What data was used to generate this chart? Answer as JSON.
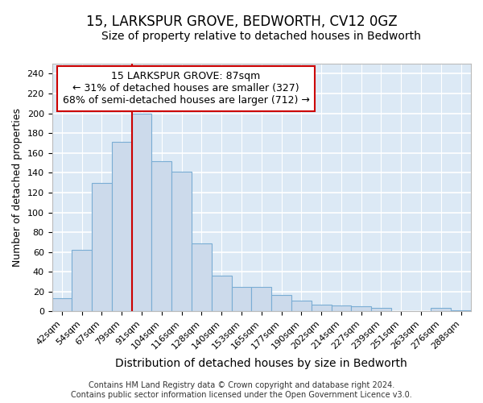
{
  "title": "15, LARKSPUR GROVE, BEDWORTH, CV12 0GZ",
  "subtitle": "Size of property relative to detached houses in Bedworth",
  "xlabel": "Distribution of detached houses by size in Bedworth",
  "ylabel": "Number of detached properties",
  "categories": [
    "42sqm",
    "54sqm",
    "67sqm",
    "79sqm",
    "91sqm",
    "104sqm",
    "116sqm",
    "128sqm",
    "140sqm",
    "153sqm",
    "165sqm",
    "177sqm",
    "190sqm",
    "202sqm",
    "214sqm",
    "227sqm",
    "239sqm",
    "251sqm",
    "263sqm",
    "276sqm",
    "288sqm"
  ],
  "values": [
    13,
    62,
    130,
    171,
    200,
    152,
    141,
    69,
    36,
    25,
    25,
    17,
    11,
    7,
    6,
    5,
    4,
    0,
    0,
    4,
    1
  ],
  "bar_color": "#ccdaeb",
  "bar_edge_color": "#7aadd4",
  "plot_bg_color": "#dce9f5",
  "fig_bg_color": "#ffffff",
  "grid_color": "#ffffff",
  "ylim": [
    0,
    250
  ],
  "yticks": [
    0,
    20,
    40,
    60,
    80,
    100,
    120,
    140,
    160,
    180,
    200,
    220,
    240
  ],
  "marker_line_color": "#cc0000",
  "annotation_line1": "15 LARKSPUR GROVE: 87sqm",
  "annotation_line2": "← 31% of detached houses are smaller (327)",
  "annotation_line3": "68% of semi-detached houses are larger (712) →",
  "annotation_box_facecolor": "#ffffff",
  "annotation_box_edgecolor": "#cc0000",
  "footer1": "Contains HM Land Registry data © Crown copyright and database right 2024.",
  "footer2": "Contains public sector information licensed under the Open Government Licence v3.0.",
  "title_fontsize": 12,
  "subtitle_fontsize": 10,
  "xlabel_fontsize": 10,
  "ylabel_fontsize": 9,
  "tick_fontsize": 8,
  "annotation_fontsize": 9,
  "footer_fontsize": 7
}
